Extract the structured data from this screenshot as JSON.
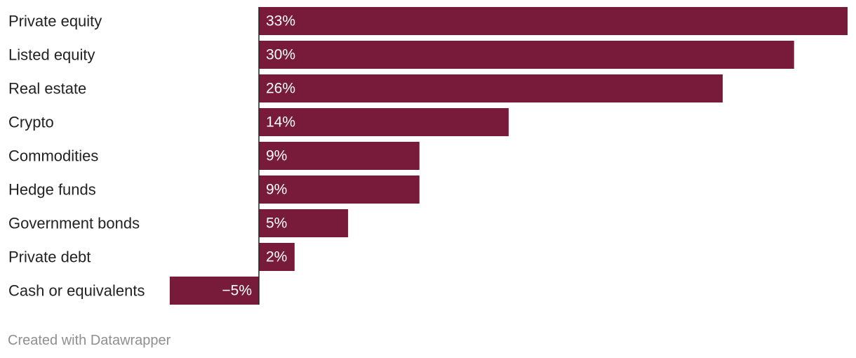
{
  "chart_data": {
    "type": "bar",
    "orientation": "horizontal",
    "categories": [
      "Private equity",
      "Listed equity",
      "Real estate",
      "Crypto",
      "Commodities",
      "Hedge funds",
      "Government bonds",
      "Private debt",
      "Cash or equivalents"
    ],
    "values": [
      33,
      30,
      26,
      14,
      9,
      9,
      5,
      2,
      -5
    ],
    "value_labels": [
      "33%",
      "30%",
      "26%",
      "14%",
      "9%",
      "9%",
      "5%",
      "2%",
      "−5%"
    ],
    "unit": "%",
    "title": "",
    "xlabel": "",
    "ylabel": "",
    "xlim": [
      -5,
      33
    ],
    "grid": false,
    "colors": {
      "bar": "#781a39",
      "inside_label": "#ffffff",
      "outside_label": "#222222",
      "category_label": "#222222",
      "baseline": "#222222"
    }
  },
  "footer": {
    "credit": "Created with Datawrapper"
  }
}
